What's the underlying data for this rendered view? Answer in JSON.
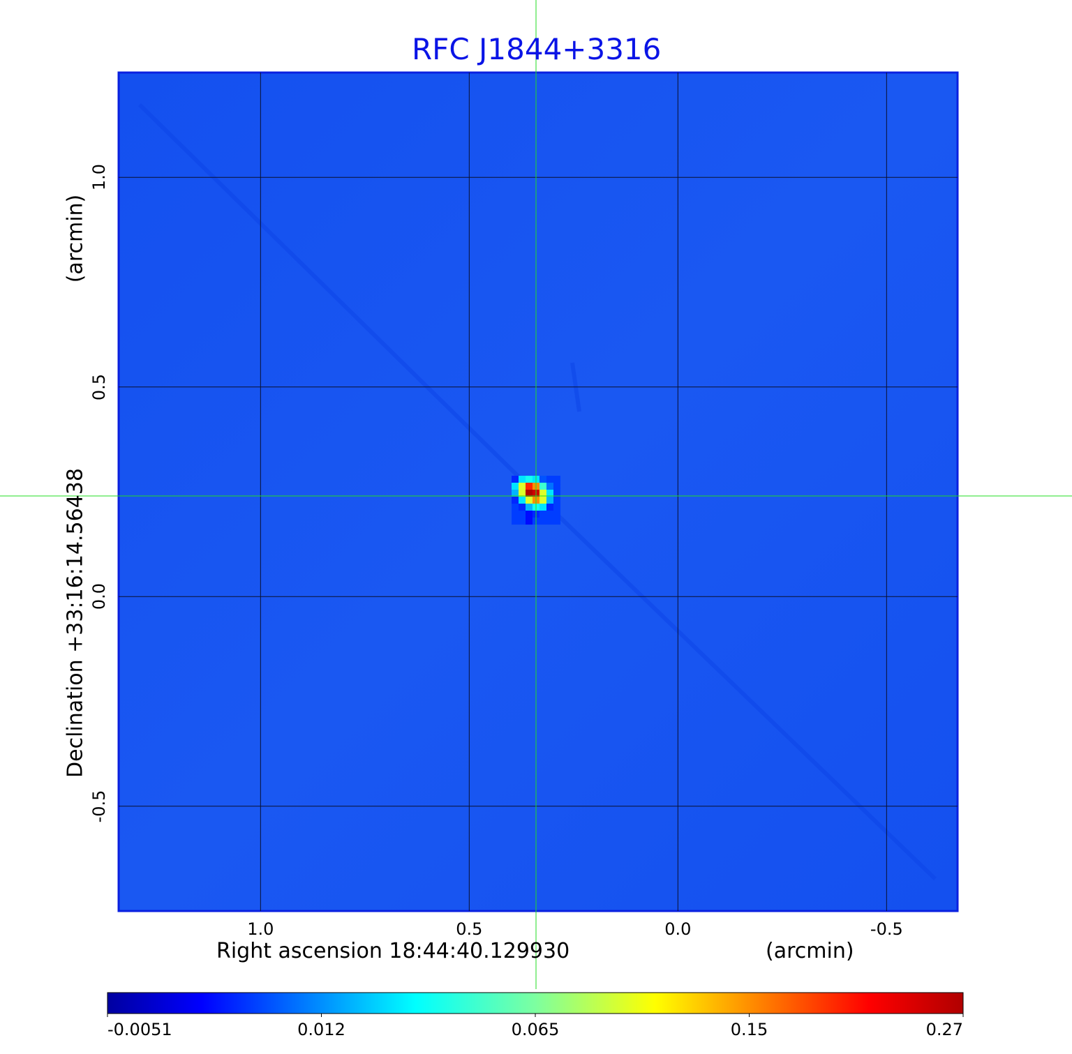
{
  "chart_data": {
    "type": "heatmap",
    "title": "RFC J1844+3316",
    "title_color": "#0a14e6",
    "xlabel": "Right ascension  18:44:40.129930",
    "xunit": "(arcmin)",
    "ylabel": "Declination  +33:16:14.56438",
    "yunit": "(arcmin)",
    "xlim": [
      1.34,
      -0.67
    ],
    "ylim": [
      -0.75,
      1.25
    ],
    "xticks": [
      1.0,
      0.5,
      0.0,
      -0.5
    ],
    "xtick_labels": [
      "1.0",
      "0.5",
      "0.0",
      "-0.5"
    ],
    "yticks": [
      1.0,
      0.5,
      0.0,
      -0.5
    ],
    "ytick_labels": [
      "1.0",
      "0.5",
      "0.0",
      "-0.5"
    ],
    "grid": true,
    "crosshair": {
      "x": 0.34,
      "y": 0.24,
      "color": "#22dd22"
    },
    "background_level": 0.0,
    "colormap": "jet",
    "colorbar": {
      "ticks": [
        -0.0051,
        0.012,
        0.065,
        0.15,
        0.27
      ],
      "tick_labels": [
        "-0.0051",
        "0.012",
        "0.065",
        "0.15",
        "0.27"
      ]
    },
    "source_patch": {
      "center": [
        0.34,
        0.23
      ],
      "values": [
        [
          0.005,
          0.03,
          0.04,
          0.03,
          0.008,
          0.0,
          0.0
        ],
        [
          0.03,
          0.1,
          0.2,
          0.15,
          0.05,
          0.01,
          0.0
        ],
        [
          0.02,
          0.1,
          0.27,
          0.25,
          0.1,
          0.03,
          0.0
        ],
        [
          0.005,
          0.03,
          0.1,
          0.15,
          0.1,
          0.02,
          0.0
        ],
        [
          0.0,
          0.005,
          0.02,
          0.04,
          0.03,
          0.005,
          0.0
        ],
        [
          0.0,
          0.0,
          -0.005,
          0.005,
          0.0,
          0.0,
          0.0
        ],
        [
          0.0,
          0.0,
          -0.005,
          0.0,
          0.0,
          0.0,
          0.0
        ]
      ]
    }
  }
}
